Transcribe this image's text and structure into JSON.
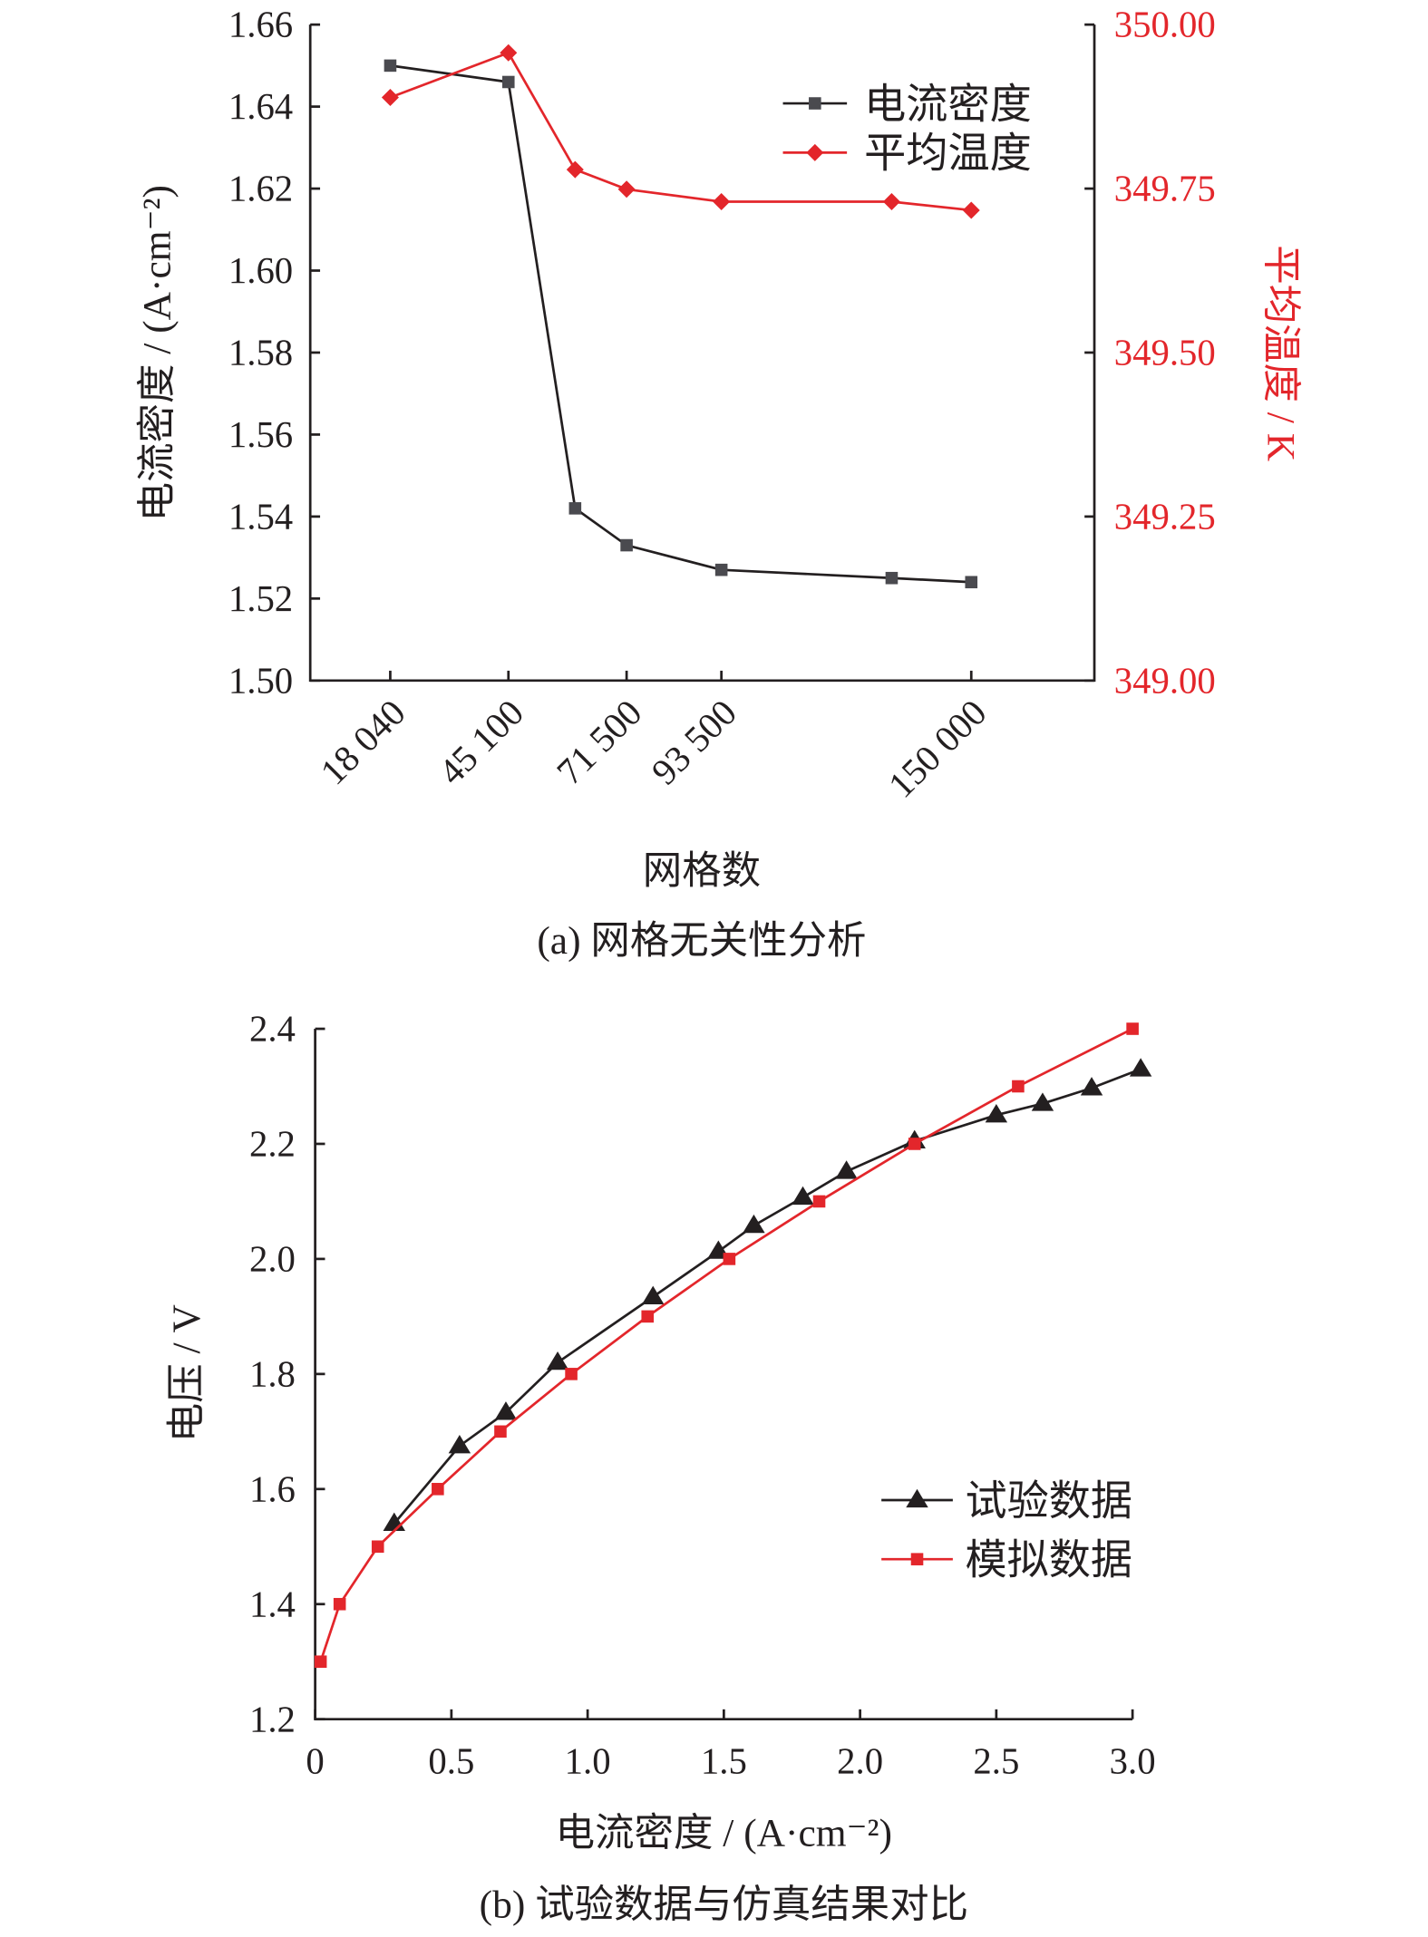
{
  "chart_data": [
    {
      "type": "line",
      "caption": "(a) 网格无关性分析",
      "xlabel": "网格数",
      "ylabel": "电流密度 / (A·cm⁻²)",
      "y2label": "平均温度 / K",
      "x_ticks": [
        18040,
        45100,
        71500,
        93500,
        150000
      ],
      "x_tick_labels": [
        "18 040",
        "45 100",
        "71 500",
        "93 500",
        "150 000"
      ],
      "x_scale": "piecewise-linear between labeled ticks",
      "ylim": [
        1.5,
        1.66
      ],
      "y_ticks": [
        "1.50",
        "1.52",
        "1.54",
        "1.56",
        "1.58",
        "1.60",
        "1.62",
        "1.64",
        "1.66"
      ],
      "y2lim": [
        349.0,
        350.0
      ],
      "y2_ticks": [
        "349.00",
        "349.25",
        "349.50",
        "349.75",
        "350.00"
      ],
      "legend_position": "top-right",
      "x": [
        18040,
        45100,
        60000,
        71500,
        93500,
        132000,
        150000
      ],
      "series": [
        {
          "name": "电流密度",
          "axis": "left",
          "marker": "square",
          "color": "#231f20",
          "values": [
            1.65,
            1.646,
            1.542,
            1.533,
            1.527,
            1.525,
            1.524
          ]
        },
        {
          "name": "平均温度",
          "axis": "right",
          "marker": "diamond",
          "color": "#e3262b",
          "values": [
            349.889,
            349.957,
            349.779,
            349.749,
            349.73,
            349.73,
            349.717
          ]
        }
      ]
    },
    {
      "type": "line",
      "caption": "(b) 试验数据与仿真结果对比",
      "xlabel": "电流密度 / (A·cm⁻²)",
      "ylabel": "电压 / V",
      "xlim": [
        0,
        3.0
      ],
      "x_ticks": [
        "0",
        "0.5",
        "1.0",
        "1.5",
        "2.0",
        "2.5",
        "3.0"
      ],
      "ylim": [
        1.2,
        2.4
      ],
      "y_ticks": [
        "1.2",
        "1.4",
        "1.6",
        "1.8",
        "2.0",
        "2.2",
        "2.4"
      ],
      "legend_position": "bottom-right",
      "series": [
        {
          "name": "试验数据",
          "marker": "triangle",
          "color": "#231f20",
          "x": [
            0.29,
            0.53,
            0.7,
            0.89,
            1.24,
            1.48,
            1.61,
            1.79,
            1.95,
            2.2,
            2.5,
            2.67,
            2.85,
            3.03
          ],
          "y": [
            1.54,
            1.675,
            1.733,
            1.82,
            1.934,
            2.013,
            2.058,
            2.107,
            2.152,
            2.205,
            2.25,
            2.27,
            2.297,
            2.33
          ]
        },
        {
          "name": "模拟数据",
          "marker": "square",
          "color": "#e3262b",
          "x": [
            0.02,
            0.09,
            0.23,
            0.45,
            0.68,
            0.94,
            1.22,
            1.52,
            1.85,
            2.2,
            2.58,
            3.0
          ],
          "y": [
            1.3,
            1.4,
            1.5,
            1.6,
            1.7,
            1.8,
            1.9,
            2.0,
            2.1,
            2.2,
            2.3,
            2.4
          ]
        }
      ]
    }
  ]
}
